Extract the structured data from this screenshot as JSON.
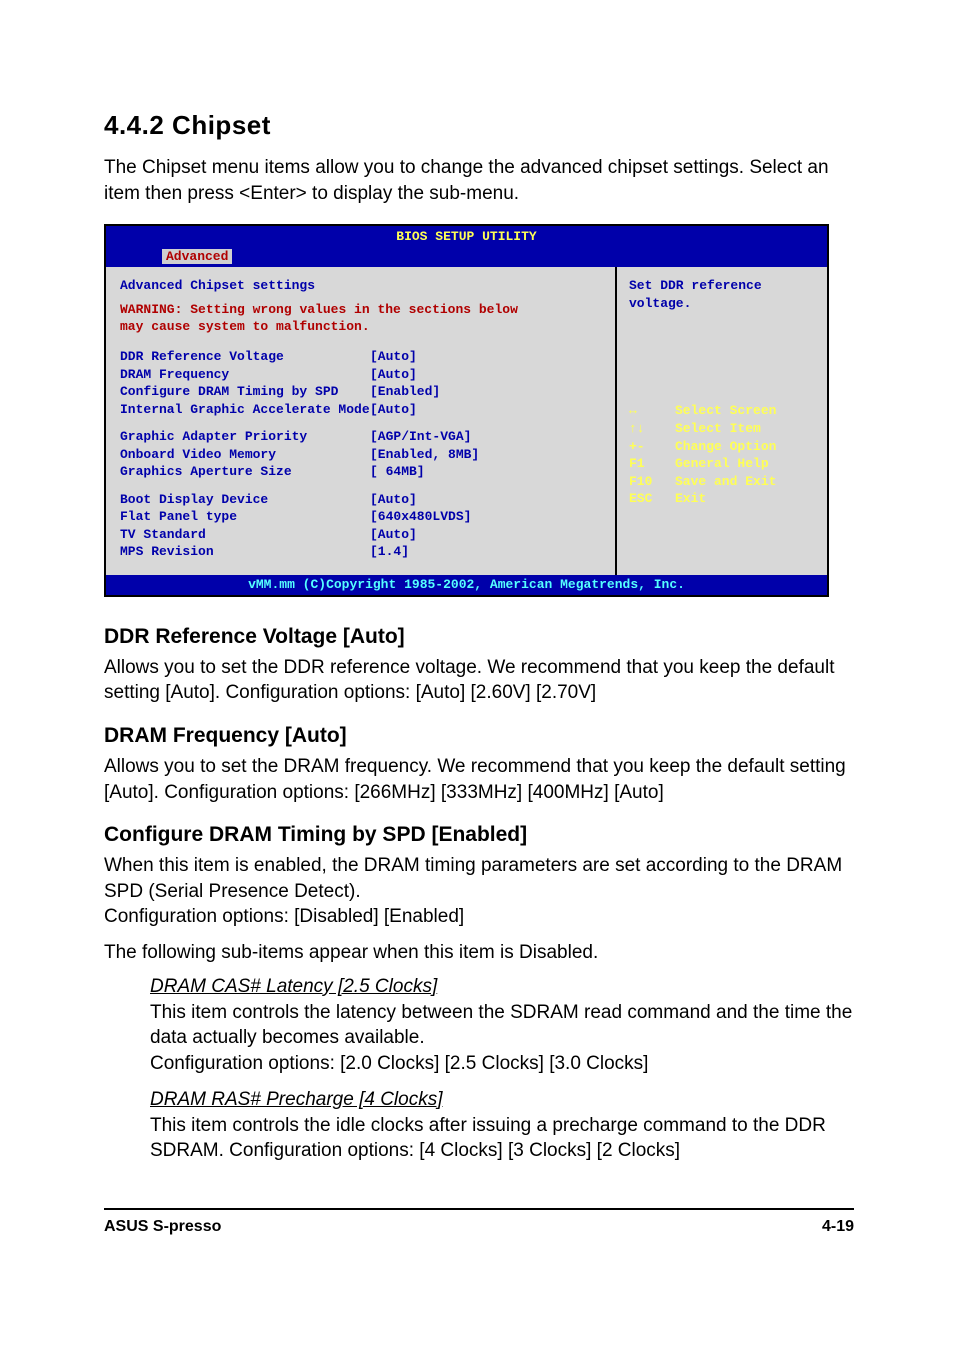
{
  "heading": {
    "number_title": "4.4.2   Chipset"
  },
  "intro": "The Chipset menu items allow you to change the advanced chipset settings. Select an item then press <Enter> to display the sub-menu.",
  "bios": {
    "title": "BIOS SETUP UTILITY",
    "tab": "Advanced",
    "section_header": "Advanced Chipset settings",
    "warning_kw": "WARNING:",
    "warning_text_1": " Setting wrong values in the sections below",
    "warning_text_2": "         may cause system to malfunction.",
    "rows1": [
      {
        "label": "DDR Reference Voltage",
        "val": "[Auto]"
      },
      {
        "label": "DRAM Frequency",
        "val": "[Auto]"
      },
      {
        "label": "Configure DRAM Timing by SPD",
        "val": "[Enabled]"
      },
      {
        "label": "Internal Graphic Accelerate Mode",
        "val": "[Auto]"
      }
    ],
    "rows2": [
      {
        "label": "Graphic Adapter Priority",
        "val": "[AGP/Int-VGA]"
      },
      {
        "label": "Onboard Video Memory",
        "val": "[Enabled, 8MB]"
      },
      {
        "label": "Graphics Aperture Size",
        "val": "[ 64MB]"
      }
    ],
    "rows3": [
      {
        "label": "Boot Display Device",
        "val": "[Auto]"
      },
      {
        "label": "Flat Panel type",
        "val": "[640x480LVDS]"
      },
      {
        "label": "TV Standard",
        "val": "[Auto]"
      },
      {
        "label": "MPS Revision",
        "val": "[1.4]"
      }
    ],
    "help_top_1": "Set DDR reference",
    "help_top_2": "voltage.",
    "nav": [
      {
        "k": "↔",
        "t": "Select Screen"
      },
      {
        "k": "↑↓",
        "t": "Select Item"
      },
      {
        "k": "+-",
        "t": "Change Option"
      },
      {
        "k": "F1",
        "t": "General Help"
      },
      {
        "k": "F10",
        "t": "Save and Exit"
      },
      {
        "k": "ESC",
        "t": "Exit"
      }
    ],
    "foot": "vMM.mm (C)Copyright 1985-2002, American Megatrends, Inc."
  },
  "options": [
    {
      "title": "DDR Reference Voltage [Auto]",
      "body": "Allows you to set the DDR reference voltage. We recommend that you keep the default setting [Auto]. Configuration options: [Auto] [2.60V] [2.70V]"
    },
    {
      "title": "DRAM Frequency [Auto]",
      "body": "Allows you to set the DRAM frequency. We recommend that you keep the default setting [Auto]. Configuration options: [266MHz] [333MHz] [400MHz] [Auto]"
    },
    {
      "title": "Configure DRAM Timing by SPD [Enabled]",
      "body": "When this item is enabled, the DRAM timing parameters are set according to the DRAM SPD (Serial Presence Detect).\nConfiguration options: [Disabled] [Enabled]",
      "extra": "The following sub-items appear when this item is Disabled.",
      "subs": [
        {
          "title": "DRAM CAS# Latency [2.5 Clocks]",
          "body": "This item controls the latency between the SDRAM read command and the time the data actually becomes available.\nConfiguration options: [2.0 Clocks] [2.5 Clocks] [3.0 Clocks]"
        },
        {
          "title": "DRAM RAS# Precharge [4 Clocks]",
          "body": "This item controls the idle clocks after issuing a precharge command to the DDR SDRAM. Configuration options: [4 Clocks] [3 Clocks] [2 Clocks]"
        }
      ]
    }
  ],
  "footer": {
    "left": "ASUS S-presso",
    "right": "4-19"
  },
  "style": {
    "colors": {
      "bios_bg": "#d8d8d8",
      "bios_bar": "#0000aa",
      "bios_text": "#0000aa",
      "bios_yellow": "#ffff55",
      "bios_cyan": "#55ffff",
      "bios_red": "#b00000",
      "page_bg": "#ffffff",
      "text": "#000000"
    },
    "fonts": {
      "body_pt": 19,
      "h2_pt": 26,
      "h3_pt": 21,
      "mono_pt": 13
    }
  }
}
